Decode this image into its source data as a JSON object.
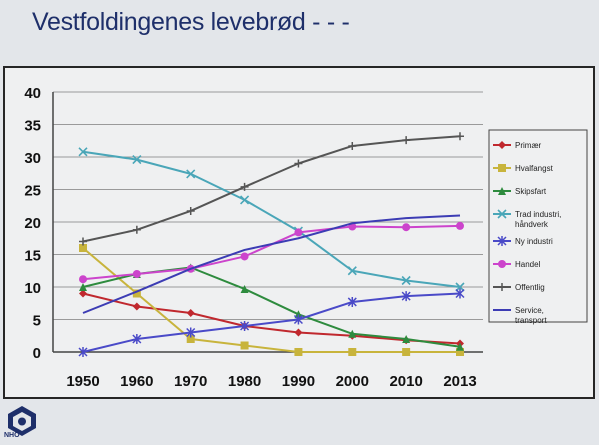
{
  "slide": {
    "title": "Vestfoldingenes levebrød - - -"
  },
  "logo": {
    "text": "NHO"
  },
  "colors": {
    "background": "#e3e6ea",
    "plot_background": "#eff0f1",
    "title": "#1e2f6a"
  },
  "chart_data": {
    "type": "line",
    "title": "",
    "xlabel": "",
    "ylabel": "",
    "categories": [
      "1950",
      "1960",
      "1970",
      "1980",
      "1990",
      "2000",
      "2010",
      "2013"
    ],
    "ylim": [
      0,
      40
    ],
    "yticks": [
      0,
      5,
      10,
      15,
      20,
      25,
      30,
      35,
      40
    ],
    "grid": true,
    "legend_position": "right",
    "series": [
      {
        "name": "Primær",
        "color": "#c0282e",
        "marker": "diamond",
        "values": [
          9,
          7,
          6,
          4,
          3,
          2.5,
          1.8,
          1.3
        ]
      },
      {
        "name": "Hvalfangst",
        "color": "#c8b43c",
        "marker": "square",
        "values": [
          16,
          9,
          2,
          1,
          0,
          0,
          0,
          0
        ]
      },
      {
        "name": "Skipsfart",
        "color": "#2e8b3e",
        "marker": "triangle",
        "values": [
          10,
          12,
          13,
          9.7,
          5.8,
          2.8,
          2,
          0.8
        ]
      },
      {
        "name": "Trad industri, håndverk",
        "color": "#4aa6b8",
        "marker": "x",
        "values": [
          30.8,
          29.6,
          27.4,
          23.4,
          18.6,
          12.5,
          11,
          10
        ]
      },
      {
        "name": "Ny industri",
        "color": "#4a4ac8",
        "marker": "star",
        "values": [
          0,
          2,
          3,
          4,
          5,
          7.7,
          8.6,
          9
        ]
      },
      {
        "name": "Handel",
        "color": "#cc44cc",
        "marker": "circle",
        "values": [
          11.2,
          12,
          12.8,
          14.7,
          18.4,
          19.3,
          19.2,
          19.4
        ]
      },
      {
        "name": "Offentlig",
        "color": "#555555",
        "marker": "plus",
        "values": [
          17,
          18.8,
          21.7,
          25.4,
          29,
          31.7,
          32.6,
          33.2
        ]
      },
      {
        "name": "Service, transport",
        "color": "#3c3cb4",
        "marker": "none",
        "values": [
          6,
          9.3,
          12.8,
          15.7,
          17.5,
          19.8,
          20.6,
          21
        ]
      }
    ]
  }
}
